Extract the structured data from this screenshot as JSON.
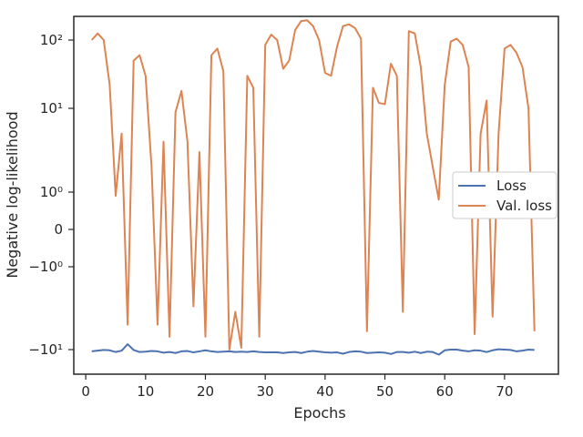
{
  "chart_data": {
    "type": "line",
    "xlabel": "Epochs",
    "ylabel": "Negative log-likelihood",
    "yscale": "symlog",
    "xlim": [
      -2,
      79
    ],
    "x_ticks": [
      0,
      10,
      20,
      30,
      40,
      50,
      60,
      70
    ],
    "y_ticks": [
      {
        "value": -10,
        "label": "−10¹"
      },
      {
        "value": -1,
        "label": "−10⁰"
      },
      {
        "value": 0,
        "label": "0"
      },
      {
        "value": 1,
        "label": "10⁰"
      },
      {
        "value": 10,
        "label": "10¹"
      },
      {
        "value": 100,
        "label": "10²"
      }
    ],
    "grid": false,
    "legend_position": "center-right",
    "series": [
      {
        "name": "Loss",
        "color": "#4c72b0",
        "x": [
          1,
          2,
          3,
          4,
          5,
          6,
          7,
          8,
          9,
          10,
          11,
          12,
          13,
          14,
          15,
          16,
          17,
          18,
          19,
          20,
          21,
          22,
          23,
          24,
          25,
          26,
          27,
          28,
          29,
          30,
          31,
          32,
          33,
          34,
          35,
          36,
          37,
          38,
          39,
          40,
          41,
          42,
          43,
          44,
          45,
          46,
          47,
          48,
          49,
          50,
          51,
          52,
          53,
          54,
          55,
          56,
          57,
          58,
          59,
          60,
          61,
          62,
          63,
          64,
          65,
          66,
          67,
          68,
          69,
          70,
          71,
          72,
          73,
          74,
          75
        ],
        "values": [
          -10.5,
          -10.3,
          -10.1,
          -10.2,
          -10.7,
          -10.3,
          -8.6,
          -10.1,
          -10.7,
          -10.6,
          -10.4,
          -10.5,
          -10.9,
          -10.7,
          -11.0,
          -10.5,
          -10.4,
          -10.8,
          -10.5,
          -10.2,
          -10.5,
          -10.7,
          -10.6,
          -10.5,
          -10.7,
          -10.6,
          -10.7,
          -10.5,
          -10.7,
          -10.8,
          -10.8,
          -10.8,
          -11.0,
          -10.8,
          -10.7,
          -11.0,
          -10.6,
          -10.4,
          -10.6,
          -10.8,
          -10.9,
          -10.8,
          -11.2,
          -10.7,
          -10.5,
          -10.6,
          -11.0,
          -10.9,
          -10.8,
          -10.9,
          -11.3,
          -10.7,
          -10.7,
          -10.9,
          -10.6,
          -11.0,
          -10.6,
          -10.7,
          -11.5,
          -10.2,
          -10.0,
          -10.0,
          -10.3,
          -10.5,
          -10.2,
          -10.3,
          -10.7,
          -10.2,
          -9.9,
          -10.0,
          -10.1,
          -10.5,
          -10.3,
          -10.0,
          -10.1
        ]
      },
      {
        "name": "Val. loss",
        "color": "#dd8452",
        "x": [
          1,
          2,
          3,
          4,
          5,
          6,
          7,
          8,
          9,
          10,
          11,
          12,
          13,
          14,
          15,
          16,
          17,
          18,
          19,
          20,
          21,
          22,
          23,
          24,
          25,
          26,
          27,
          28,
          29,
          30,
          31,
          32,
          33,
          34,
          35,
          36,
          37,
          38,
          39,
          40,
          41,
          42,
          43,
          44,
          45,
          46,
          47,
          48,
          49,
          50,
          51,
          52,
          53,
          54,
          55,
          56,
          57,
          58,
          59,
          60,
          61,
          62,
          63,
          64,
          65,
          66,
          67,
          68,
          69,
          70,
          71,
          72,
          73,
          74,
          75
        ],
        "values": [
          100,
          125,
          100,
          22,
          0.9,
          5,
          -5,
          50,
          60,
          30,
          2,
          -5,
          4,
          -7,
          9,
          18,
          4,
          -3,
          3,
          -7,
          60,
          75,
          35,
          -10,
          -3.5,
          -9.5,
          30,
          20,
          -7,
          85,
          120,
          100,
          38,
          50,
          140,
          190,
          195,
          160,
          100,
          33,
          30,
          80,
          160,
          170,
          150,
          105,
          -6,
          20,
          12,
          11.5,
          45,
          30,
          -3.5,
          135,
          125,
          40,
          5,
          2,
          0.8,
          22,
          95,
          105,
          85,
          40,
          -6.5,
          5,
          13,
          -4,
          5,
          75,
          85,
          65,
          40,
          10,
          -6
        ]
      }
    ]
  }
}
